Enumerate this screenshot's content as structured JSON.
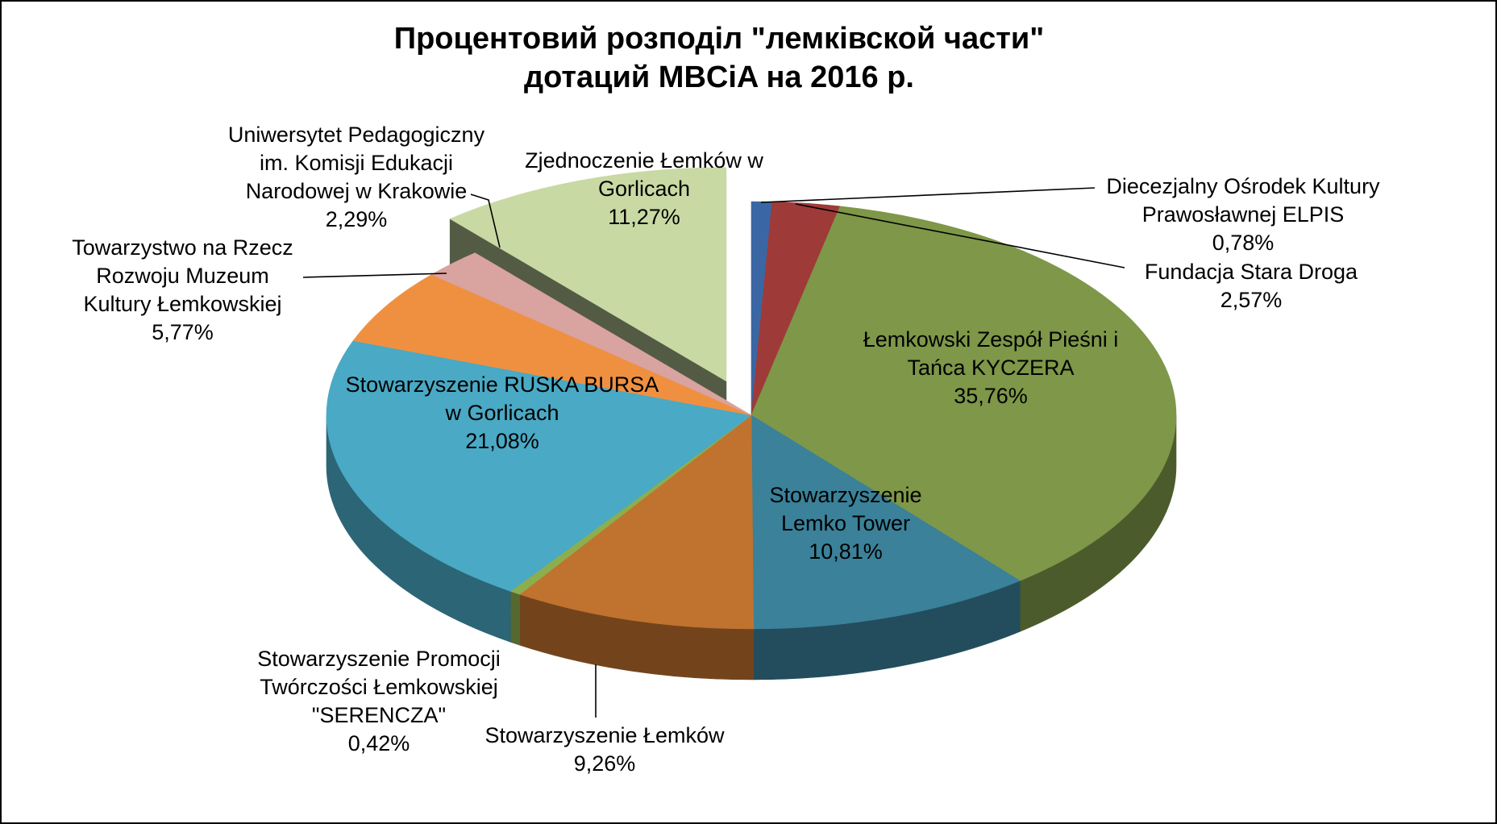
{
  "title": {
    "line1": "Процентовий розподіл \"лемківской части\"",
    "line2": "дотаций MBCiA на 2016 р."
  },
  "chart_data": {
    "type": "pie",
    "effect": "3d-exploded",
    "title": "Процентовий розподіл \"лемківской части\" дотаций MBCiA на 2016 р.",
    "unit": "percent",
    "legend": "none",
    "start_angle_deg": 0,
    "direction": "clockwise",
    "slices": [
      {
        "label": "Diecezjalny Ośrodek Kultury Prawosławnej ELPIS",
        "value": 0.78,
        "value_label": "0,78%",
        "color": "#3A67A4",
        "exploded": false
      },
      {
        "label": "Fundacja Stara Droga",
        "value": 2.57,
        "value_label": "2,57%",
        "color": "#9E3B38",
        "exploded": false
      },
      {
        "label": "Łemkowski Zespół Pieśni i Tańca KYCZERA",
        "value": 35.76,
        "value_label": "35,76%",
        "color": "#7E9748",
        "exploded": false
      },
      {
        "label": "Stowarzyszenie Lemko Tower",
        "value": 10.81,
        "value_label": "10,81%",
        "color": "#3A8199",
        "exploded": false
      },
      {
        "label": "Stowarzyszenie Łemków",
        "value": 9.26,
        "value_label": "9,26%",
        "color": "#C0722F",
        "exploded": false
      },
      {
        "label": "Stowarzyszenie Promocji Twórczości Łemkowskiej \"SERENCZA\"",
        "value": 0.42,
        "value_label": "0,42%",
        "color": "#8CAE4E",
        "exploded": false
      },
      {
        "label": "Stowarzyszenie RUSKA BURSA w Gorlicach",
        "value": 21.08,
        "value_label": "21,08%",
        "color": "#4AA9C4",
        "exploded": false
      },
      {
        "label": "Towarzystwo na Rzecz Rozwoju Muzeum Kultury Łemkowskiej",
        "value": 5.77,
        "value_label": "5,77%",
        "color": "#EF9041",
        "exploded": false
      },
      {
        "label": "Uniwersytet Pedagogiczny im. Komisji Edukacji Narodowej w Krakowie",
        "value": 2.29,
        "value_label": "2,29%",
        "color": "#D9A3A0",
        "exploded": false
      },
      {
        "label": "Zjednoczenie Łemków w Gorlicach",
        "value": 11.27,
        "value_label": "11,27%",
        "color": "#C8D9A4",
        "exploded": true
      }
    ]
  }
}
